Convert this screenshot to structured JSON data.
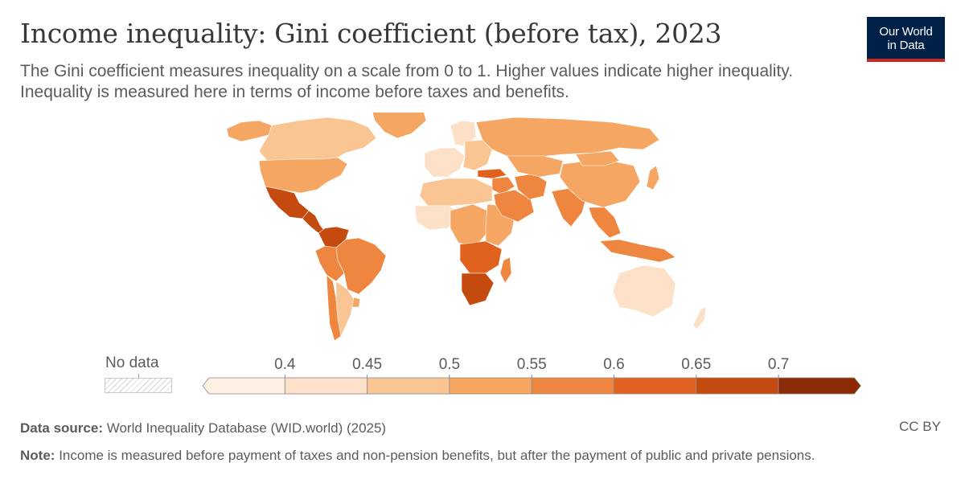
{
  "header": {
    "title": "Income inequality: Gini coefficient (before tax), 2023",
    "subtitle": "The Gini coefficient measures inequality on a scale from 0 to 1. Higher values indicate higher inequality. Inequality is measured here in terms of income before taxes and benefits."
  },
  "logo": {
    "line1": "Our World",
    "line2": "in Data"
  },
  "legend": {
    "no_data_label": "No data",
    "thresholds": [
      "0.4",
      "0.45",
      "0.5",
      "0.55",
      "0.6",
      "0.65",
      "0.7"
    ],
    "colors": [
      "#fff0e4",
      "#fce0c7",
      "#f9c592",
      "#f5a663",
      "#ee8640",
      "#e0621e",
      "#c54a0f",
      "#8c2a06"
    ]
  },
  "colors": {
    "land_default": "#ee8640",
    "no_data": "#e0e0e0",
    "brand": "#002147",
    "brand_accent": "#ce261e"
  },
  "regions": {
    "alaska": 3,
    "canada": 2,
    "greenland": 3,
    "usa": 3,
    "mexico": 6,
    "central_america": 6,
    "colombia_venezuela": 6,
    "brazil": 4,
    "peru_bolivia": 4,
    "chile": 4,
    "argentina": 2,
    "uruguay": 3,
    "nordics": 1,
    "western_europe": 1,
    "eastern_europe": 2,
    "russia": 3,
    "north_africa": 2,
    "west_africa": 1,
    "central_africa": 3,
    "east_africa": 3,
    "southern_africa": 5,
    "south_africa": 6,
    "madagascar": 4,
    "turkey": 5,
    "middle_east": 4,
    "arabia": 4,
    "iran": 4,
    "central_asia": 3,
    "india": 4,
    "china": 3,
    "mongolia": 3,
    "southeast_asia": 4,
    "indonesia": 4,
    "japan": 3,
    "australia": 1,
    "new_zealand": 1
  },
  "footer": {
    "source_label": "Data source:",
    "source": "World Inequality Database (WID.world) (2025)",
    "note_label": "Note:",
    "note": "Income is measured before payment of taxes and non-pension benefits, but after the payment of public and private pensions.",
    "license": "CC BY"
  }
}
